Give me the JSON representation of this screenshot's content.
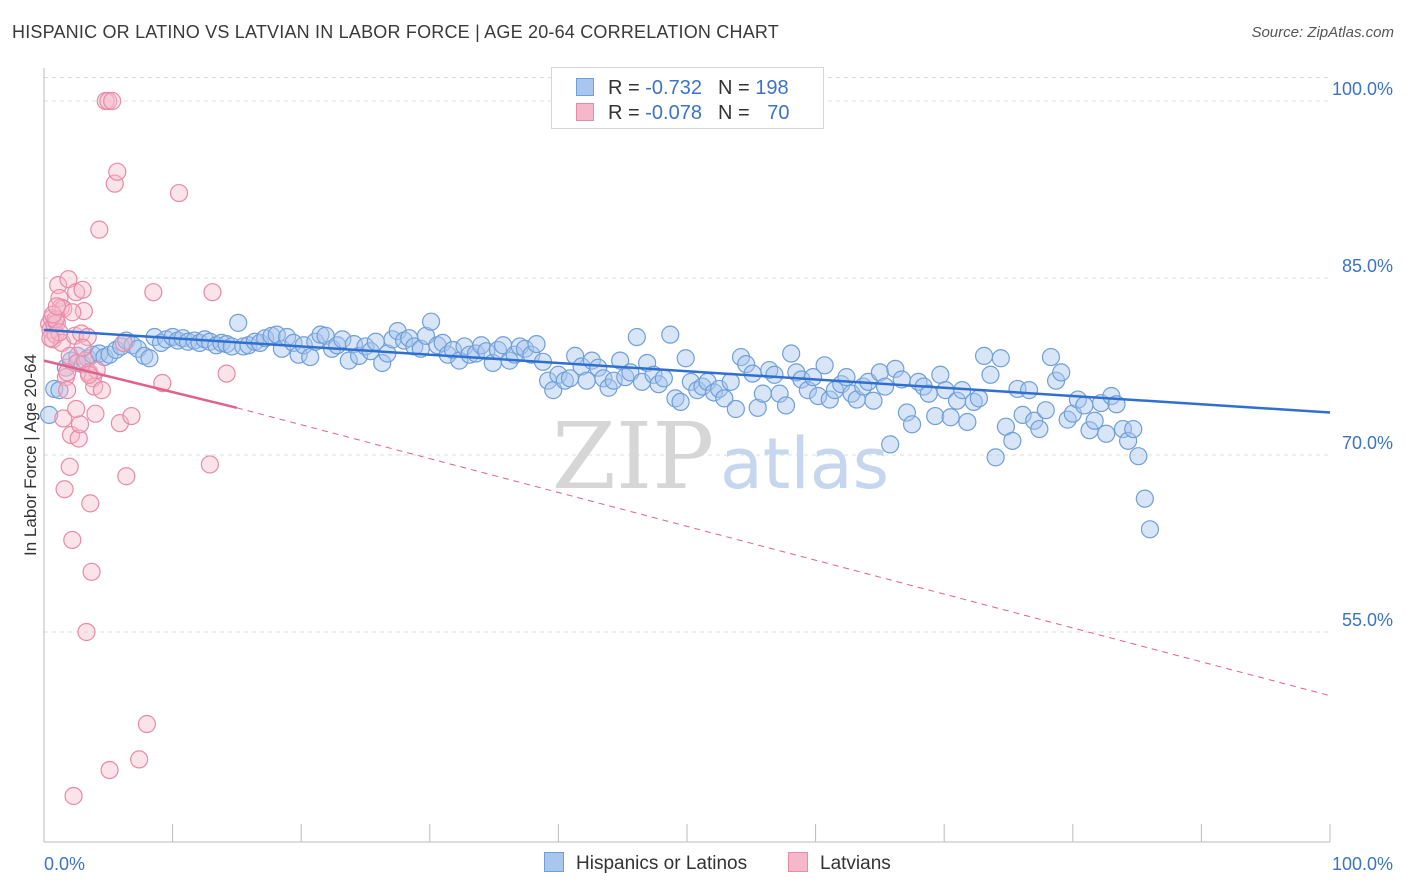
{
  "title": "HISPANIC OR LATINO VS LATVIAN IN LABOR FORCE | AGE 20-64 CORRELATION CHART",
  "source": "Source: ZipAtlas.com",
  "watermark": {
    "zip": "ZIP",
    "atlas": "atlas"
  },
  "legend_top": {
    "series1": {
      "r_label": "R = ",
      "r_value": "-0.732",
      "n_label": "N = ",
      "n_value": "198"
    },
    "series2": {
      "r_label": "R = ",
      "r_value": "-0.078",
      "n_label": "N = ",
      "n_value": "70"
    }
  },
  "legend_bottom": {
    "series1": "Hispanics or Latinos",
    "series2": "Latvians"
  },
  "colors": {
    "blue_fill": "#a9c6ee",
    "blue_stroke": "#6f9fd8",
    "blue_line": "#2f6fd0",
    "pink_fill": "#f5b8cb",
    "pink_stroke": "#e88aa8",
    "pink_line": "#e0628c",
    "grid": "#dcdcdc",
    "axis_text": "#3b73c6"
  },
  "chart_data": {
    "type": "scatter",
    "title": "HISPANIC OR LATINO VS LATVIAN IN LABOR FORCE | AGE 20-64 CORRELATION CHART",
    "xlabel": "",
    "ylabel": "In Labor Force | Age 20-64",
    "xlim": [
      0,
      100
    ],
    "ylim": [
      37.2,
      102.8
    ],
    "x_tick_labels": [
      "0.0%",
      "100.0%"
    ],
    "y_ticks": [
      55,
      70,
      85,
      100
    ],
    "y_tick_labels": [
      "55.0%",
      "70.0%",
      "85.0%",
      "100.0%"
    ],
    "series": [
      {
        "name": "Hispanics or Latinos",
        "R": -0.732,
        "N": 198,
        "trend": {
          "x": [
            0,
            100
          ],
          "y": [
            80.6,
            73.6
          ],
          "style": "solid"
        },
        "points": [
          [
            0.4,
            73.4
          ],
          [
            0.8,
            75.6
          ],
          [
            1.2,
            75.5
          ],
          [
            1.7,
            77.4
          ],
          [
            2.1,
            78.0
          ],
          [
            2.6,
            78.4
          ],
          [
            3.0,
            77.7
          ],
          [
            3.4,
            78.2
          ],
          [
            3.8,
            78.5
          ],
          [
            4.3,
            78.6
          ],
          [
            4.7,
            78.3
          ],
          [
            5.1,
            78.5
          ],
          [
            5.6,
            78.9
          ],
          [
            6.0,
            79.2
          ],
          [
            6.4,
            79.7
          ],
          [
            6.9,
            79.3
          ],
          [
            7.3,
            79.0
          ],
          [
            7.8,
            78.4
          ],
          [
            8.2,
            78.2
          ],
          [
            8.6,
            80.0
          ],
          [
            9.1,
            79.5
          ],
          [
            9.5,
            79.8
          ],
          [
            10.0,
            80.0
          ],
          [
            10.4,
            79.7
          ],
          [
            10.8,
            79.9
          ],
          [
            11.2,
            79.6
          ],
          [
            11.7,
            79.7
          ],
          [
            12.1,
            79.5
          ],
          [
            12.5,
            79.8
          ],
          [
            12.9,
            79.6
          ],
          [
            13.4,
            79.3
          ],
          [
            13.8,
            79.5
          ],
          [
            14.2,
            79.4
          ],
          [
            14.6,
            79.2
          ],
          [
            15.1,
            81.2
          ],
          [
            15.5,
            79.2
          ],
          [
            15.9,
            79.3
          ],
          [
            16.4,
            79.6
          ],
          [
            16.8,
            79.5
          ],
          [
            17.2,
            79.9
          ],
          [
            17.7,
            80.1
          ],
          [
            18.1,
            80.2
          ],
          [
            18.5,
            79.0
          ],
          [
            18.9,
            80.0
          ],
          [
            19.4,
            79.5
          ],
          [
            19.8,
            78.5
          ],
          [
            20.2,
            79.3
          ],
          [
            20.7,
            78.3
          ],
          [
            21.1,
            79.6
          ],
          [
            21.5,
            80.2
          ],
          [
            21.9,
            80.1
          ],
          [
            22.4,
            79.0
          ],
          [
            22.8,
            79.3
          ],
          [
            23.2,
            79.8
          ],
          [
            23.7,
            78.0
          ],
          [
            24.1,
            79.4
          ],
          [
            24.5,
            78.4
          ],
          [
            25.0,
            79.2
          ],
          [
            25.4,
            78.8
          ],
          [
            25.8,
            79.6
          ],
          [
            26.3,
            77.8
          ],
          [
            26.7,
            78.6
          ],
          [
            27.1,
            79.8
          ],
          [
            27.5,
            80.5
          ],
          [
            28.0,
            79.7
          ],
          [
            28.4,
            79.9
          ],
          [
            28.8,
            79.2
          ],
          [
            29.3,
            79.0
          ],
          [
            29.7,
            80.1
          ],
          [
            30.1,
            81.3
          ],
          [
            30.6,
            79.3
          ],
          [
            31.0,
            79.5
          ],
          [
            31.4,
            78.5
          ],
          [
            31.8,
            78.9
          ],
          [
            32.3,
            78.0
          ],
          [
            32.7,
            79.2
          ],
          [
            33.1,
            78.5
          ],
          [
            33.6,
            78.6
          ],
          [
            34.0,
            79.3
          ],
          [
            34.4,
            78.8
          ],
          [
            34.9,
            77.8
          ],
          [
            35.3,
            78.9
          ],
          [
            35.7,
            79.3
          ],
          [
            36.2,
            78.0
          ],
          [
            36.6,
            78.5
          ],
          [
            37.0,
            79.2
          ],
          [
            37.4,
            79.0
          ],
          [
            37.9,
            78.5
          ],
          [
            38.3,
            79.4
          ],
          [
            38.8,
            77.9
          ],
          [
            39.2,
            76.3
          ],
          [
            39.6,
            75.5
          ],
          [
            40.0,
            76.8
          ],
          [
            40.5,
            76.3
          ],
          [
            40.9,
            76.5
          ],
          [
            41.3,
            78.4
          ],
          [
            41.8,
            77.5
          ],
          [
            42.2,
            76.3
          ],
          [
            42.6,
            78.0
          ],
          [
            43.1,
            77.4
          ],
          [
            43.5,
            76.5
          ],
          [
            43.9,
            75.7
          ],
          [
            44.3,
            76.3
          ],
          [
            44.8,
            78.0
          ],
          [
            45.2,
            76.6
          ],
          [
            45.6,
            77.0
          ],
          [
            46.1,
            80.0
          ],
          [
            46.5,
            76.2
          ],
          [
            46.9,
            77.8
          ],
          [
            47.4,
            76.8
          ],
          [
            47.8,
            76.0
          ],
          [
            48.2,
            76.5
          ],
          [
            48.7,
            80.2
          ],
          [
            49.1,
            74.8
          ],
          [
            49.5,
            74.5
          ],
          [
            49.9,
            78.2
          ],
          [
            50.3,
            76.2
          ],
          [
            50.8,
            75.5
          ],
          [
            51.2,
            75.8
          ],
          [
            51.6,
            76.2
          ],
          [
            52.1,
            75.3
          ],
          [
            52.5,
            75.6
          ],
          [
            52.9,
            74.8
          ],
          [
            53.4,
            76.2
          ],
          [
            53.8,
            73.9
          ],
          [
            54.2,
            78.3
          ],
          [
            54.6,
            77.7
          ],
          [
            55.1,
            76.9
          ],
          [
            55.5,
            74.0
          ],
          [
            55.9,
            75.2
          ],
          [
            56.4,
            77.2
          ],
          [
            56.8,
            76.8
          ],
          [
            57.2,
            75.2
          ],
          [
            57.7,
            74.2
          ],
          [
            58.1,
            78.6
          ],
          [
            58.5,
            77.0
          ],
          [
            58.9,
            76.4
          ],
          [
            59.4,
            75.5
          ],
          [
            59.8,
            76.6
          ],
          [
            60.2,
            75.0
          ],
          [
            60.7,
            77.6
          ],
          [
            61.1,
            74.7
          ],
          [
            61.5,
            75.5
          ],
          [
            62.0,
            76.0
          ],
          [
            62.4,
            76.6
          ],
          [
            62.8,
            75.2
          ],
          [
            63.2,
            74.7
          ],
          [
            63.7,
            75.8
          ],
          [
            64.1,
            76.2
          ],
          [
            64.5,
            74.6
          ],
          [
            65.0,
            77.0
          ],
          [
            65.4,
            75.8
          ],
          [
            65.8,
            70.9
          ],
          [
            66.2,
            77.3
          ],
          [
            66.7,
            76.4
          ],
          [
            67.1,
            73.6
          ],
          [
            67.5,
            72.6
          ],
          [
            68.0,
            76.2
          ],
          [
            68.4,
            75.8
          ],
          [
            68.8,
            75.2
          ],
          [
            69.3,
            73.3
          ],
          [
            69.7,
            76.8
          ],
          [
            70.1,
            75.5
          ],
          [
            70.5,
            73.2
          ],
          [
            71.0,
            74.6
          ],
          [
            71.4,
            75.5
          ],
          [
            71.8,
            72.8
          ],
          [
            72.3,
            74.5
          ],
          [
            72.7,
            74.8
          ],
          [
            73.1,
            78.4
          ],
          [
            73.6,
            76.8
          ],
          [
            74.0,
            69.8
          ],
          [
            74.4,
            78.2
          ],
          [
            74.8,
            72.4
          ],
          [
            75.3,
            71.2
          ],
          [
            75.7,
            75.6
          ],
          [
            76.1,
            73.4
          ],
          [
            76.6,
            75.5
          ],
          [
            77.0,
            72.9
          ],
          [
            77.4,
            72.2
          ],
          [
            77.9,
            73.8
          ],
          [
            78.3,
            78.3
          ],
          [
            78.7,
            76.3
          ],
          [
            79.1,
            77.0
          ],
          [
            79.6,
            73.0
          ],
          [
            80.0,
            73.5
          ],
          [
            80.4,
            74.7
          ],
          [
            80.9,
            74.2
          ],
          [
            81.3,
            72.1
          ],
          [
            81.7,
            72.9
          ],
          [
            82.2,
            74.4
          ],
          [
            82.6,
            71.8
          ],
          [
            83.0,
            75.0
          ],
          [
            83.4,
            74.3
          ],
          [
            83.9,
            72.2
          ],
          [
            84.3,
            71.2
          ],
          [
            84.7,
            72.2
          ],
          [
            85.1,
            69.9
          ],
          [
            85.6,
            66.3
          ],
          [
            86.0,
            63.7
          ]
        ]
      },
      {
        "name": "Latvians",
        "R": -0.078,
        "N": 70,
        "trend": {
          "x": [
            0,
            15
          ],
          "y": [
            78.0,
            74.0
          ],
          "style": "solid",
          "extended_x": [
            15,
            100
          ],
          "extended_y": [
            74.0,
            49.6
          ],
          "extended_style": "dashed"
        },
        "points": [
          [
            0.4,
            81.1
          ],
          [
            0.5,
            80.6
          ],
          [
            0.6,
            81.6
          ],
          [
            0.7,
            79.8
          ],
          [
            0.8,
            81.1
          ],
          [
            0.9,
            80.2
          ],
          [
            1.0,
            81.2
          ],
          [
            1.1,
            84.4
          ],
          [
            1.2,
            83.3
          ],
          [
            1.3,
            82.5
          ],
          [
            1.4,
            79.5
          ],
          [
            1.5,
            82.4
          ],
          [
            1.5,
            73.1
          ],
          [
            1.6,
            67.1
          ],
          [
            1.7,
            76.6
          ],
          [
            1.8,
            75.5
          ],
          [
            1.9,
            84.9
          ],
          [
            2.0,
            78.4
          ],
          [
            2.0,
            69.0
          ],
          [
            2.1,
            71.7
          ],
          [
            2.2,
            62.8
          ],
          [
            2.3,
            41.1
          ],
          [
            2.4,
            80.1
          ],
          [
            2.5,
            83.8
          ],
          [
            2.6,
            77.8
          ],
          [
            2.7,
            71.4
          ],
          [
            2.8,
            72.6
          ],
          [
            2.9,
            80.3
          ],
          [
            3.0,
            84.0
          ],
          [
            3.1,
            82.2
          ],
          [
            3.2,
            78.0
          ],
          [
            3.3,
            55.0
          ],
          [
            3.4,
            80.0
          ],
          [
            3.5,
            77.0
          ],
          [
            3.6,
            65.9
          ],
          [
            3.7,
            60.1
          ],
          [
            3.8,
            76.5
          ],
          [
            3.9,
            75.8
          ],
          [
            4.0,
            73.5
          ],
          [
            4.1,
            77.2
          ],
          [
            4.3,
            89.1
          ],
          [
            4.5,
            75.5
          ],
          [
            4.8,
            100.0
          ],
          [
            5.0,
            100.0
          ],
          [
            5.1,
            43.3
          ],
          [
            5.3,
            100.0
          ],
          [
            5.5,
            93.0
          ],
          [
            5.7,
            94.0
          ],
          [
            5.9,
            72.7
          ],
          [
            6.2,
            79.5
          ],
          [
            6.4,
            68.2
          ],
          [
            6.8,
            73.3
          ],
          [
            7.4,
            44.2
          ],
          [
            8.0,
            47.2
          ],
          [
            8.5,
            83.8
          ],
          [
            9.2,
            76.1
          ],
          [
            10.5,
            92.2
          ],
          [
            12.9,
            69.2
          ],
          [
            13.1,
            83.8
          ],
          [
            14.2,
            76.9
          ],
          [
            0.9,
            81.5
          ],
          [
            1.2,
            80.4
          ],
          [
            1.8,
            77.0
          ],
          [
            2.2,
            82.1
          ],
          [
            2.5,
            73.9
          ],
          [
            3.0,
            79.1
          ],
          [
            3.5,
            76.8
          ],
          [
            0.7,
            81.9
          ],
          [
            1.0,
            82.6
          ],
          [
            0.5,
            79.9
          ]
        ]
      }
    ]
  }
}
